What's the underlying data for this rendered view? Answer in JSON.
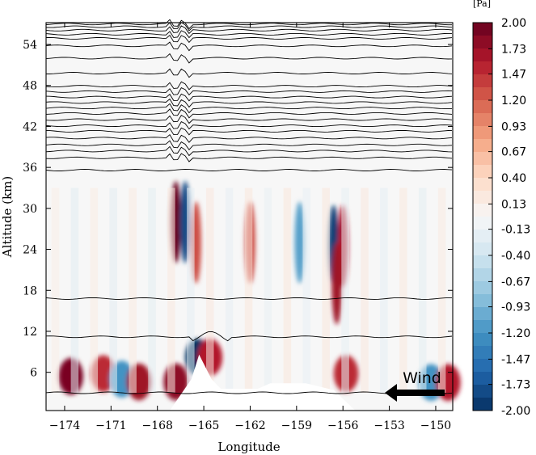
{
  "chart_data": {
    "type": "heatmap",
    "xlabel": "Longitude",
    "ylabel": "Altitude (km)",
    "xlim": [
      -175.2,
      -148.9
    ],
    "ylim": [
      0.4,
      57.2
    ],
    "x_ticks": [
      -174,
      -171,
      -168,
      -165,
      -162,
      -159,
      -156,
      -153,
      -150
    ],
    "x_tick_labels": [
      "−174",
      "−171",
      "−168",
      "−165",
      "−162",
      "−159",
      "−156",
      "−153",
      "−150"
    ],
    "y_ticks": [
      6,
      12,
      18,
      24,
      30,
      36,
      42,
      48,
      54
    ],
    "y_tick_labels": [
      "6",
      "12",
      "18",
      "24",
      "30",
      "36",
      "42",
      "48",
      "54"
    ],
    "colorbar": {
      "unit": "[Pa]",
      "min": -2.0,
      "max": 2.0,
      "levels": 30,
      "tick_values": [
        2.0,
        1.73,
        1.47,
        1.2,
        0.93,
        0.67,
        0.4,
        0.13,
        -0.13,
        -0.4,
        -0.67,
        -0.93,
        -1.2,
        -1.47,
        -1.73,
        -2.0
      ],
      "tick_labels": [
        "2.00",
        "1.73",
        "1.47",
        "1.20",
        "0.93",
        "0.67",
        "0.40",
        "0.13",
        "-0.13",
        "-0.40",
        "-0.67",
        "-0.93",
        "-1.20",
        "-1.47",
        "-1.73",
        "-2.00"
      ],
      "colormap": "RdBu_r",
      "colors": [
        "#053061",
        "#2166ac",
        "#4393c3",
        "#92c5de",
        "#d1e5f0",
        "#f7f7f7",
        "#fddbc7",
        "#f4a582",
        "#d6604d",
        "#b2182b",
        "#67001f"
      ]
    },
    "contour_lines_altitude_km": [
      3,
      11.2,
      16.8,
      35.6,
      37.4,
      38.4,
      39.3,
      40.3,
      41.3,
      42.1,
      43,
      43.9,
      44.7,
      45.5,
      46.3,
      47.1,
      47.9,
      49.8,
      52,
      53.8,
      54.9,
      55.5,
      56.1,
      56.6,
      57
    ],
    "features": [
      {
        "type": "anomaly",
        "lon": -173.6,
        "alt": 5.4,
        "amp": 1.9
      },
      {
        "type": "anomaly",
        "lon": -171.5,
        "alt": 5.8,
        "amp": 1.5
      },
      {
        "type": "anomaly",
        "lon": -170.3,
        "alt": 5.0,
        "amp": -1.2
      },
      {
        "type": "anomaly",
        "lon": -169.2,
        "alt": 4.6,
        "amp": 1.7
      },
      {
        "type": "anomaly",
        "lon": -166.8,
        "alt": 4.6,
        "amp": 1.8
      },
      {
        "type": "anomaly",
        "lon": -165.4,
        "alt": 8.2,
        "amp": -2.0
      },
      {
        "type": "anomaly",
        "lon": -164.6,
        "alt": 8.2,
        "amp": 1.6
      },
      {
        "type": "anomaly",
        "lon": -166.8,
        "alt": 28.0,
        "amp": 2.0
      },
      {
        "type": "anomaly",
        "lon": -166.2,
        "alt": 28.0,
        "amp": -1.8
      },
      {
        "type": "anomaly",
        "lon": -165.5,
        "alt": 25.0,
        "amp": 1.3
      },
      {
        "type": "anomaly",
        "lon": -162.0,
        "alt": 25.0,
        "amp": 1.3
      },
      {
        "type": "anomaly",
        "lon": -158.8,
        "alt": 25.0,
        "amp": -1.1
      },
      {
        "type": "anomaly",
        "lon": -156.6,
        "alt": 24.5,
        "amp": -1.9
      },
      {
        "type": "anomaly",
        "lon": -156.0,
        "alt": 24.5,
        "amp": 1.6
      },
      {
        "type": "anomaly",
        "lon": -156.4,
        "alt": 19.0,
        "amp": 1.7
      },
      {
        "type": "anomaly",
        "lon": -155.8,
        "alt": 5.8,
        "amp": 1.5
      },
      {
        "type": "anomaly",
        "lon": -150.3,
        "alt": 4.5,
        "amp": -1.2
      },
      {
        "type": "anomaly",
        "lon": -149.2,
        "alt": 4.5,
        "amp": 1.6
      }
    ],
    "terrain_profile": [
      {
        "lon": -175.2,
        "alt": 0.4
      },
      {
        "lon": -167.2,
        "alt": 0.4
      },
      {
        "lon": -165.8,
        "alt": 5.0
      },
      {
        "lon": -165.3,
        "alt": 8.6
      },
      {
        "lon": -164.5,
        "alt": 5.0
      },
      {
        "lon": -163.9,
        "alt": 3.6
      },
      {
        "lon": -161.5,
        "alt": 3.6
      },
      {
        "lon": -160.7,
        "alt": 4.4
      },
      {
        "lon": -158.4,
        "alt": 4.4
      },
      {
        "lon": -156.6,
        "alt": 3.4
      },
      {
        "lon": -155.2,
        "alt": 0.4
      },
      {
        "lon": -148.9,
        "alt": 0.4
      }
    ],
    "annotation": {
      "text": "Wind",
      "arrow_direction": "west"
    }
  }
}
